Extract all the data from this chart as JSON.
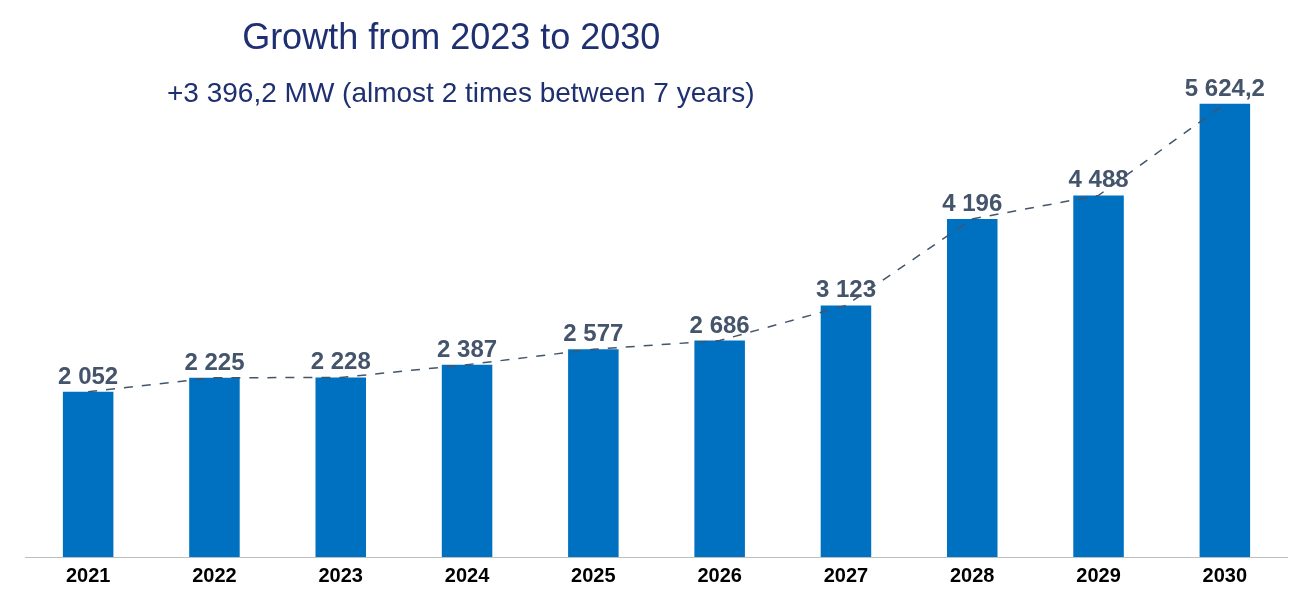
{
  "chart_data": {
    "type": "bar",
    "title": "Growth from 2023 to 2030",
    "subtitle": "+3 396,2 MW (almost 2 times between 7 years)",
    "categories": [
      "2021",
      "2022",
      "2023",
      "2024",
      "2025",
      "2026",
      "2027",
      "2028",
      "2029",
      "2030"
    ],
    "tick_labels": "x",
    "grid": false,
    "series": [
      {
        "color": "#0070c0",
        "values": [
          2052,
          2225,
          2228,
          2387,
          2577,
          2686,
          3123,
          4196,
          4488,
          5624.2
        ],
        "value_labels": [
          "2 052",
          "2 225",
          "2 228",
          "2 387",
          "2 577",
          "2 686",
          "3 123",
          "4 196",
          "4 488",
          "5 624,2"
        ]
      },
      {
        "type": "line",
        "color": "#44546a",
        "line_style": "dashed",
        "marker": "none",
        "values": [
          2052,
          2225,
          2228,
          2387,
          2577,
          2686,
          3123,
          4196,
          4488,
          5624.2
        ]
      }
    ]
  }
}
